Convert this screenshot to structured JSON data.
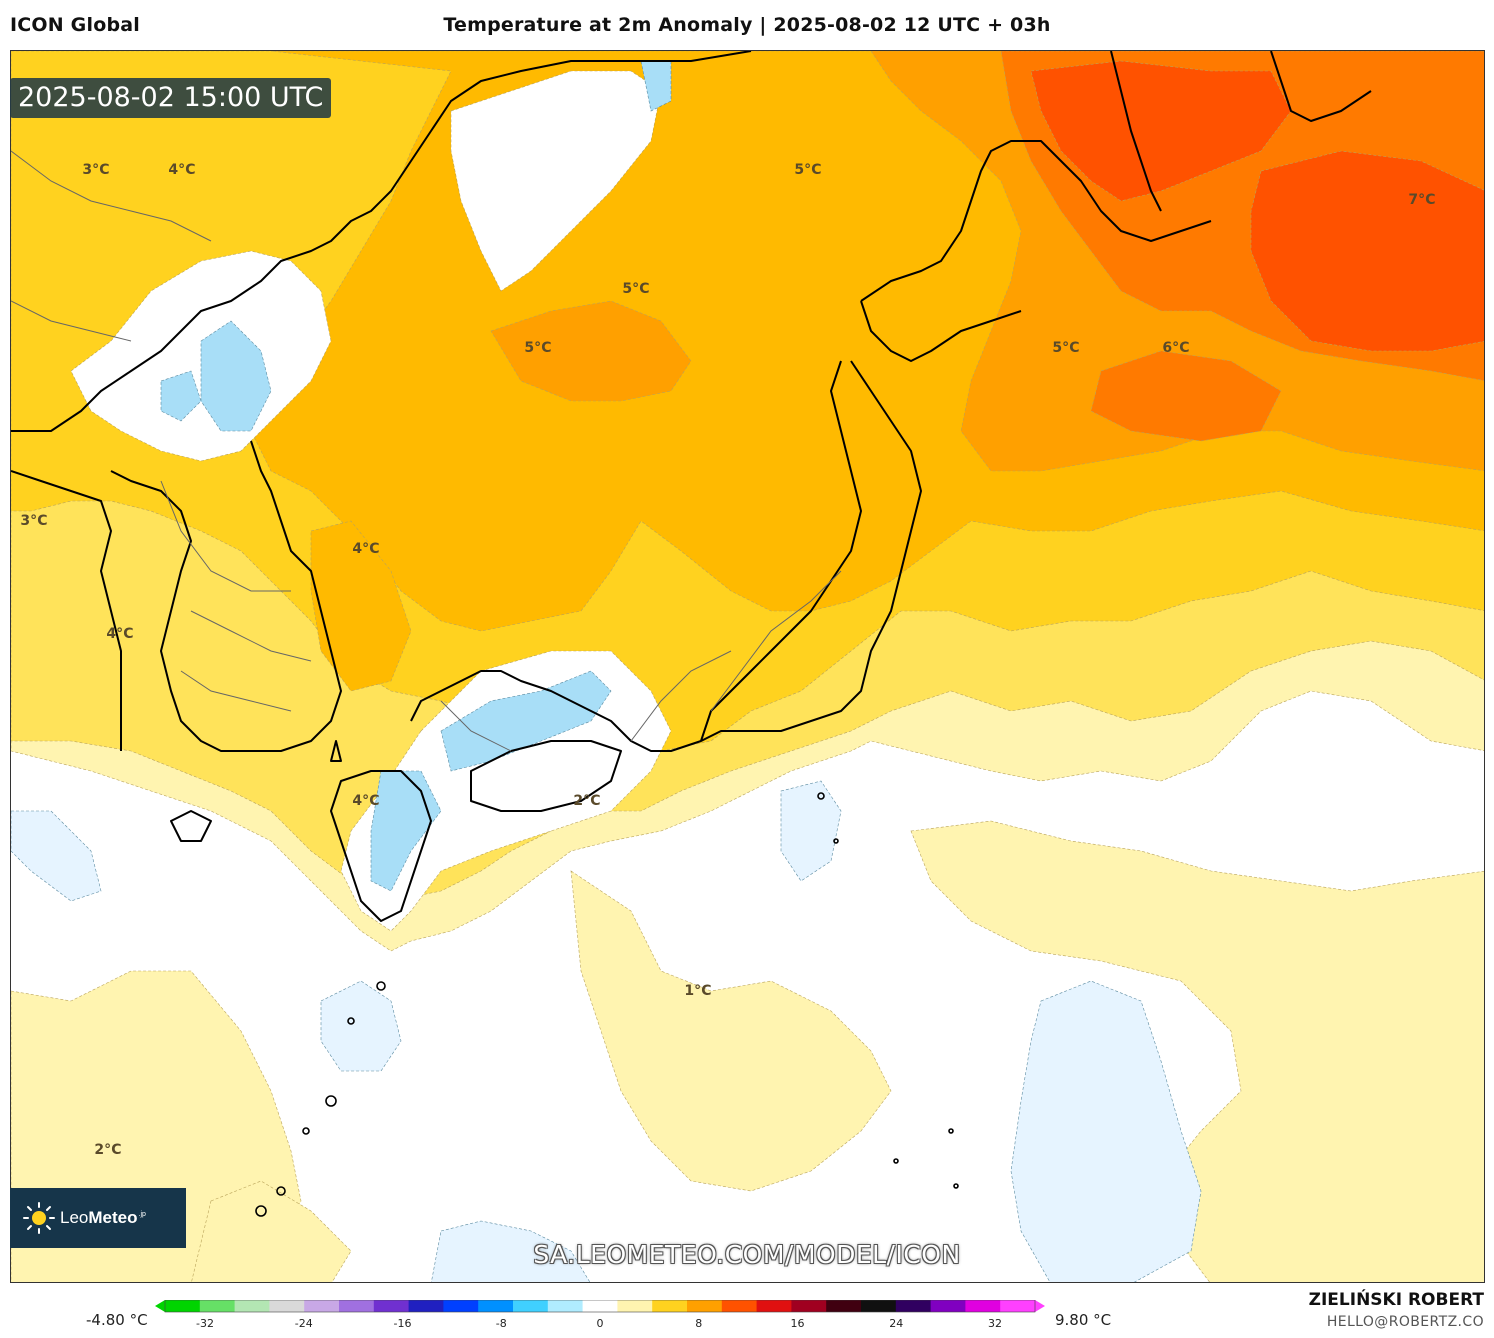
{
  "header": {
    "model": "ICON Global",
    "title": "Temperature at 2m Anomaly | 2025-08-02 12 UTC + 03h"
  },
  "map": {
    "valid_time": "2025-08-02 15:00 UTC",
    "labels": [
      {
        "text": "3°C"
      },
      {
        "text": "4°C"
      },
      {
        "text": "5°C"
      },
      {
        "text": "7°C"
      },
      {
        "text": "5°C"
      },
      {
        "text": "5°C"
      },
      {
        "text": "5°C"
      },
      {
        "text": "6°C"
      },
      {
        "text": "3°C"
      },
      {
        "text": "4°C"
      },
      {
        "text": "4°C"
      },
      {
        "text": "4°C"
      },
      {
        "text": "2°C"
      },
      {
        "text": "1°C"
      },
      {
        "text": "2°C"
      }
    ],
    "watermark": "SA.LEOMETEO.COM/MODEL/ICON",
    "colors": {
      "ocean_neutral": "#ffffff",
      "anom_0_1": "#fff4b0",
      "anom_2_3": "#ffe35a",
      "anom_3_4": "#ffd21f",
      "anom_4_5": "#ffba00",
      "anom_5_6": "#ffa000",
      "anom_6_7": "#ff7a00",
      "anom_7_plus": "#ff5200",
      "cool_anom": "#e6f4ff",
      "cold_anom": "#a8def7",
      "coastline": "#000000"
    }
  },
  "logo": {
    "brand_light": "Leo",
    "brand_bold": "Meteo",
    "suffix": ".jp"
  },
  "legend": {
    "min_label": "-4.80 °C",
    "max_label": "9.80 °C",
    "ticks": [
      "-32",
      "-24",
      "-16",
      "-8",
      "0",
      "8",
      "16",
      "24",
      "32"
    ],
    "stops": [
      "#00d400",
      "#66e066",
      "#b3e6b3",
      "#d9d9d9",
      "#c8a8e6",
      "#a070e0",
      "#7030d0",
      "#2020c0",
      "#0040ff",
      "#0090ff",
      "#40d0ff",
      "#b0ecff",
      "#ffffff",
      "#fff4b0",
      "#ffd21f",
      "#ffa000",
      "#ff5200",
      "#e01010",
      "#a00020",
      "#400010",
      "#101010",
      "#300060",
      "#8000c0",
      "#e000e0",
      "#ff40ff"
    ]
  },
  "credits": {
    "name": "ZIELIŃSKI ROBERT",
    "email": "HELLO@ROBERTZ.CO"
  }
}
